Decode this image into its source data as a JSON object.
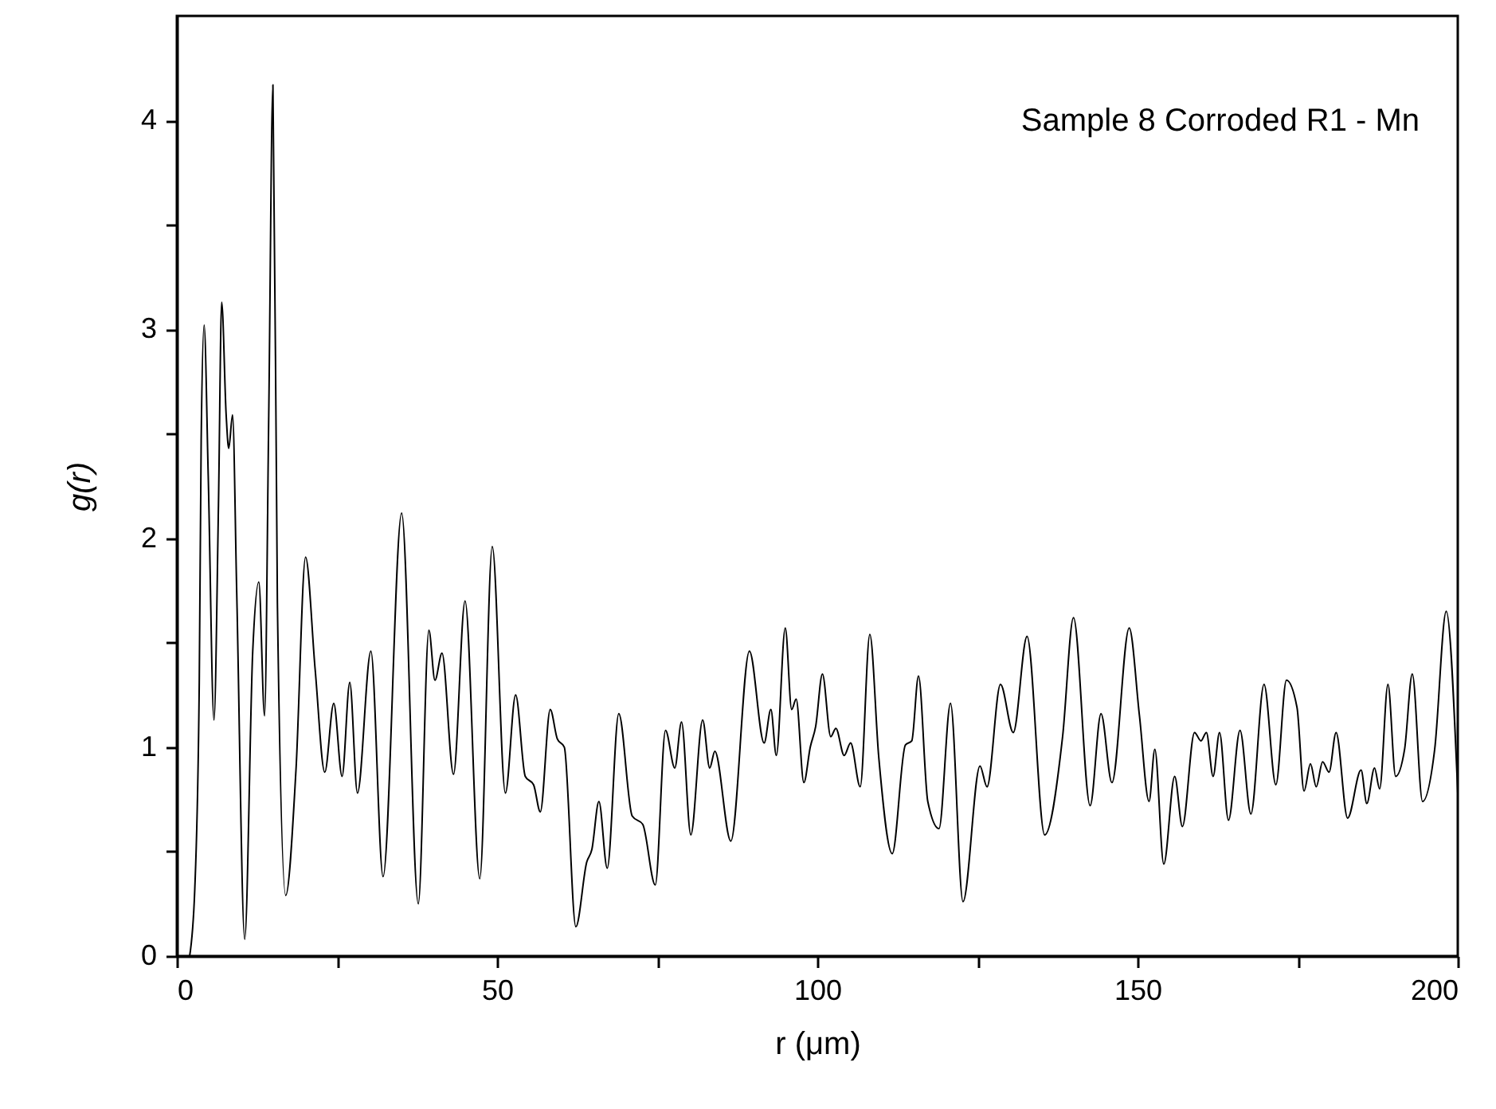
{
  "chart_data": {
    "type": "line",
    "xlabel": "r (μm)",
    "ylabel": "g(r)",
    "annotations": [
      "Sample 8 Corroded R1 - Mn"
    ],
    "xlim": [
      0,
      200
    ],
    "ylim": [
      0,
      4.5
    ],
    "xticks": [
      0,
      {
        "value": 25,
        "label": null
      },
      50,
      {
        "value": 75,
        "label": null
      },
      100,
      {
        "value": 125,
        "label": null
      },
      150,
      {
        "value": 175,
        "label": null
      },
      200
    ],
    "yticks": [
      0,
      {
        "value": 0.5,
        "label": null
      },
      1,
      {
        "value": 1.5,
        "label": null
      },
      2,
      {
        "value": 2.5,
        "label": null
      },
      3,
      {
        "value": 3.5,
        "label": null
      },
      4
    ],
    "grid": false,
    "marker": "none",
    "line_style": "solid",
    "series": [
      {
        "color": "#000000",
        "x": [
          2.0,
          2.8,
          3.5,
          3.8,
          4.26,
          4.9,
          5.8,
          6.5,
          7.0,
          7.7,
          8.1,
          8.7,
          9.35,
          10.6,
          11.85,
          12.8,
          13.7,
          14.35,
          15.0,
          15.7,
          17.0,
          18.6,
          20.1,
          21.6,
          23.1,
          24.5,
          25.8,
          27.0,
          28.2,
          30.3,
          32.2,
          35.1,
          37.7,
          39.35,
          40.3,
          41.4,
          43.2,
          45.0,
          47.3,
          49.25,
          51.3,
          52.9,
          54.4,
          55.7,
          56.75,
          58.3,
          59.4,
          60.5,
          62.3,
          64.0,
          64.8,
          65.9,
          67.2,
          69.0,
          71.1,
          72.75,
          74.7,
          76.3,
          77.75,
          78.8,
          80.25,
          82.1,
          83.2,
          84.0,
          86.5,
          89.4,
          91.7,
          92.75,
          93.6,
          95.0,
          96.0,
          96.7,
          97.9,
          98.9,
          99.75,
          100.8,
          102.1,
          102.9,
          104.2,
          105.2,
          106.7,
          108.2,
          109.6,
          111.7,
          113.75,
          114.75,
          115.8,
          117.25,
          119.0,
          120.8,
          122.75,
          125.4,
          126.5,
          128.6,
          130.6,
          132.75,
          135.5,
          138.3,
          140.0,
          142.6,
          144.3,
          146.0,
          148.7,
          150.3,
          151.8,
          152.7,
          154.1,
          155.8,
          157.0,
          158.9,
          159.9,
          160.75,
          161.8,
          162.8,
          164.2,
          166.0,
          167.7,
          169.75,
          171.6,
          173.25,
          174.9,
          176.0,
          177.0,
          177.9,
          178.9,
          179.9,
          181.0,
          182.8,
          184.9,
          185.8,
          187.0,
          187.8,
          189.1,
          190.3,
          191.7,
          192.9,
          194.5,
          196.4,
          198.2,
          200.0
        ],
        "values": [
          0.0,
          0.32,
          1.31,
          2.47,
          3.02,
          2.3,
          1.13,
          2.16,
          3.13,
          2.59,
          2.43,
          2.59,
          1.74,
          0.08,
          1.46,
          1.79,
          1.15,
          2.59,
          4.17,
          1.69,
          0.29,
          0.89,
          1.91,
          1.37,
          0.88,
          1.21,
          0.86,
          1.31,
          0.78,
          1.46,
          0.38,
          2.12,
          0.25,
          1.56,
          1.32,
          1.45,
          0.87,
          1.7,
          0.37,
          1.96,
          0.78,
          1.25,
          0.86,
          0.82,
          0.69,
          1.18,
          1.04,
          1.0,
          0.14,
          0.45,
          0.51,
          0.74,
          0.42,
          1.16,
          0.67,
          0.63,
          0.34,
          1.08,
          0.9,
          1.12,
          0.58,
          1.13,
          0.9,
          0.98,
          0.55,
          1.46,
          1.02,
          1.18,
          0.96,
          1.57,
          1.18,
          1.23,
          0.83,
          1.0,
          1.1,
          1.35,
          1.05,
          1.09,
          0.96,
          1.02,
          0.81,
          1.54,
          0.95,
          0.49,
          1.01,
          1.03,
          1.34,
          0.74,
          0.61,
          1.21,
          0.26,
          0.91,
          0.81,
          1.3,
          1.07,
          1.53,
          0.58,
          1.05,
          1.62,
          0.72,
          1.16,
          0.83,
          1.57,
          1.15,
          0.74,
          0.99,
          0.44,
          0.86,
          0.62,
          1.07,
          1.03,
          1.07,
          0.86,
          1.07,
          0.65,
          1.08,
          0.68,
          1.3,
          0.82,
          1.32,
          1.19,
          0.79,
          0.92,
          0.81,
          0.93,
          0.88,
          1.07,
          0.66,
          0.89,
          0.73,
          0.9,
          0.8,
          1.3,
          0.86,
          0.99,
          1.35,
          0.74,
          0.99,
          1.65,
          0.78
        ]
      }
    ]
  }
}
